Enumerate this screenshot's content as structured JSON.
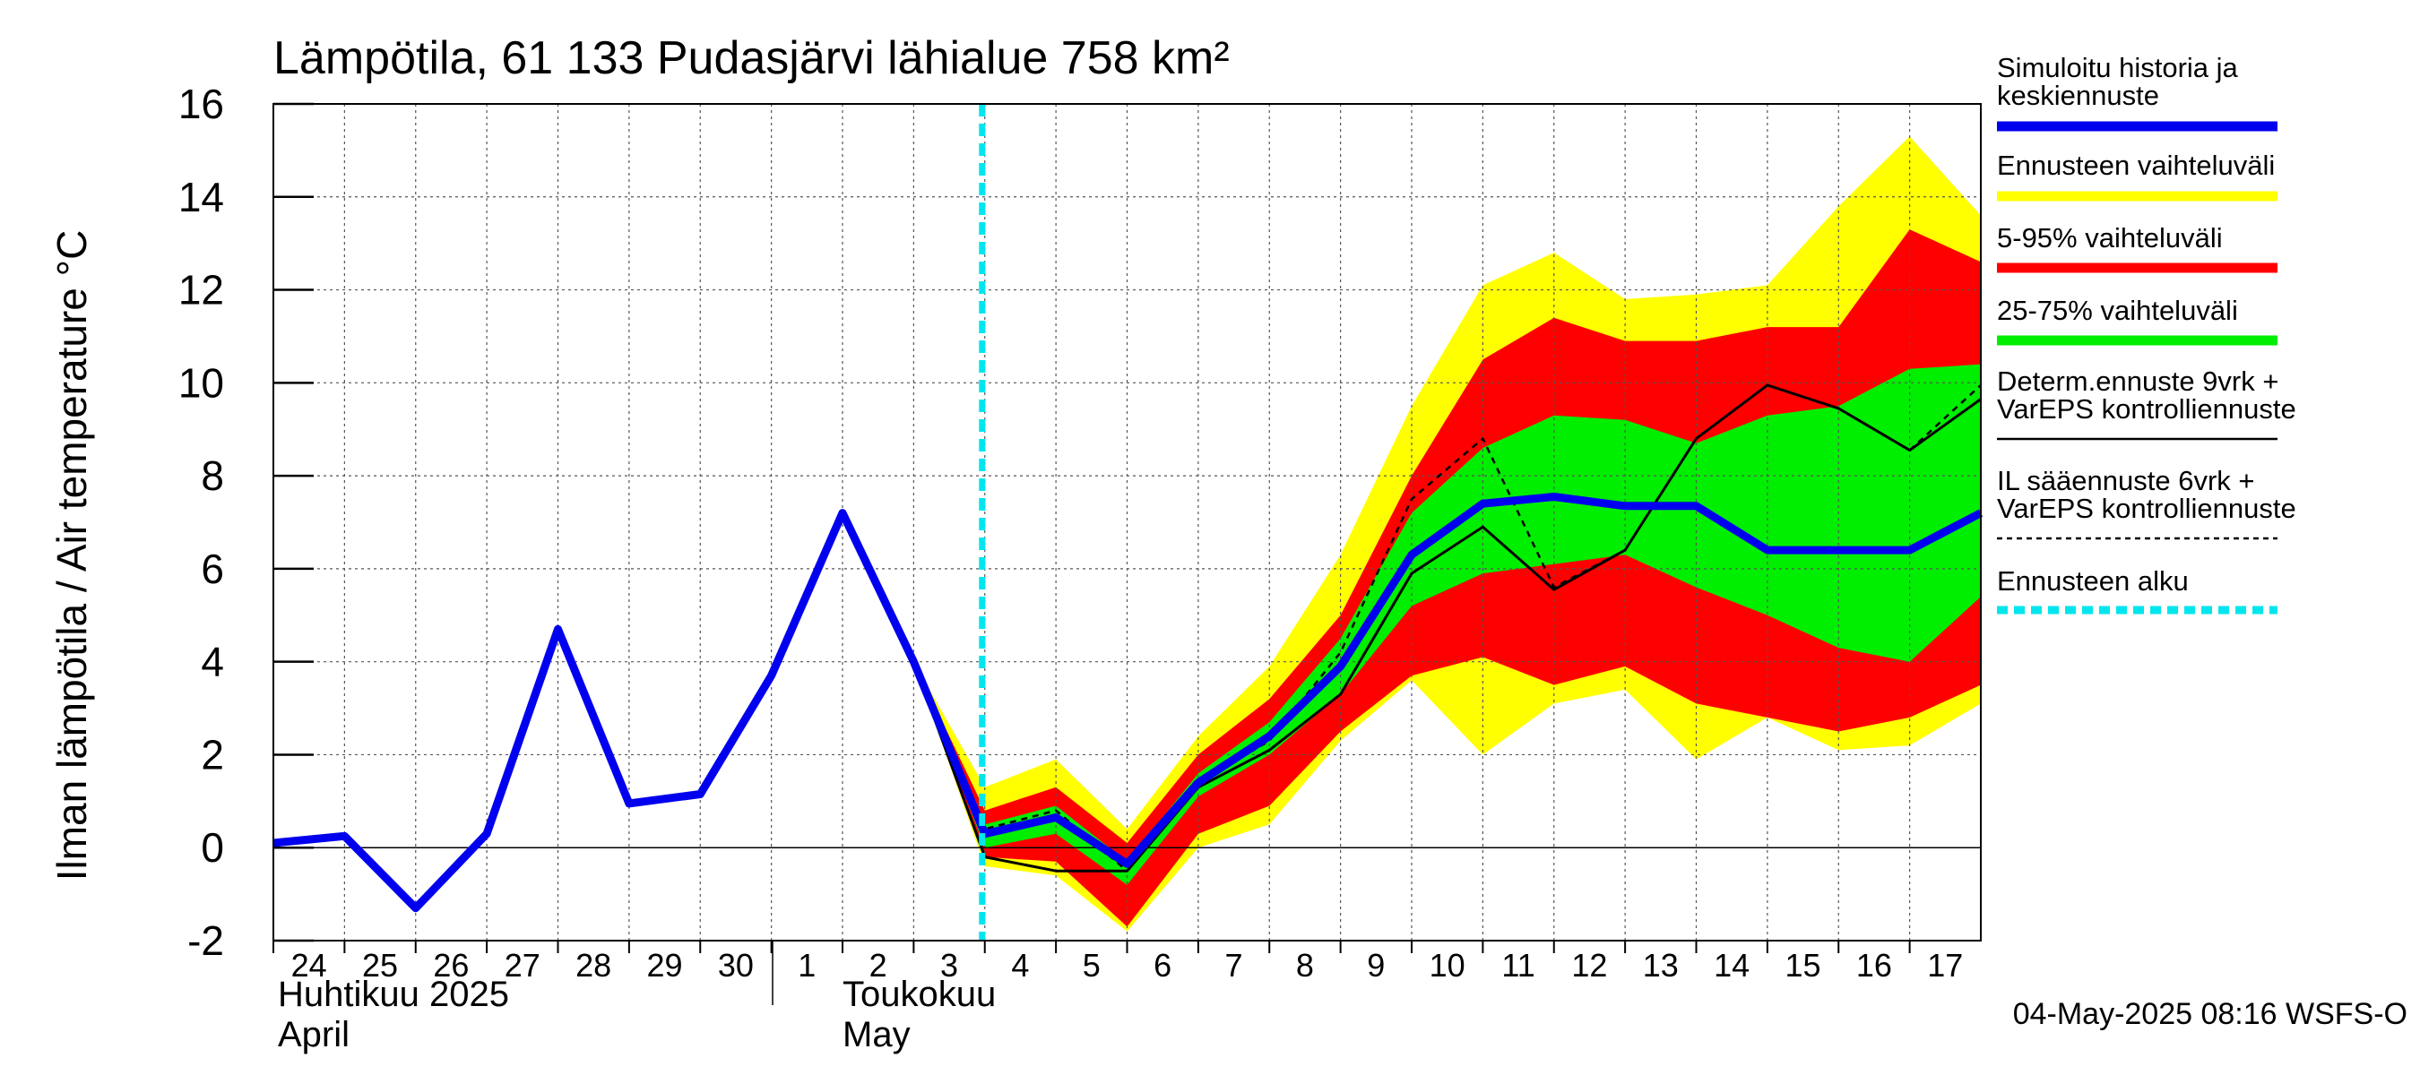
{
  "chart_data": {
    "type": "line",
    "title": "Lämpötila, 61 133 Pudasjärvi lähialue 758 km²",
    "ylabel": "Ilman lämpötila / Air temperature   °C",
    "ylim": [
      -2,
      16
    ],
    "yticks": [
      -2,
      0,
      2,
      4,
      6,
      8,
      10,
      12,
      14,
      16
    ],
    "xrange": [
      "2025-04-24",
      "2025-05-18"
    ],
    "x_tick_labels": [
      "24",
      "25",
      "26",
      "27",
      "28",
      "29",
      "30",
      "1",
      "2",
      "3",
      "4",
      "5",
      "6",
      "7",
      "8",
      "9",
      "10",
      "11",
      "12",
      "13",
      "14",
      "15",
      "16",
      "17"
    ],
    "month_labels": [
      {
        "line1": "Huhtikuu  2025",
        "line2": "April"
      },
      {
        "line1": "Toukokuu",
        "line2": "May"
      }
    ],
    "forecast_start": "2025-05-04",
    "grid": true,
    "footer": "04-May-2025 08:16 WSFS-O",
    "colors": {
      "history": "#0000ee",
      "range_full": "#ffff00",
      "range_5_95": "#ff0000",
      "range_25_75": "#00ee00",
      "determ": "#000000",
      "il": "#000000",
      "forecast_start": "#00e5ee"
    },
    "legend": [
      {
        "key": "history",
        "lines": [
          "Simuloitu historia ja",
          "keskiennuste"
        ],
        "style": "thick"
      },
      {
        "key": "range_full",
        "lines": [
          "Ennusteen vaihteluväli"
        ],
        "style": "thick"
      },
      {
        "key": "range_5_95",
        "lines": [
          "5-95% vaihteluväli"
        ],
        "style": "thick"
      },
      {
        "key": "range_25_75",
        "lines": [
          "25-75% vaihteluväli"
        ],
        "style": "thick"
      },
      {
        "key": "determ",
        "lines": [
          "Determ.ennuste 9vrk +",
          "VarEPS kontrolliennuste"
        ],
        "style": "thin"
      },
      {
        "key": "il",
        "lines": [
          "IL sääennuste 6vrk  +",
          "  VarEPS kontrolliennuste"
        ],
        "style": "dashed"
      },
      {
        "key": "forecast_start",
        "lines": [
          "Ennusteen alku"
        ],
        "style": "dotted"
      }
    ],
    "series": [
      {
        "key": "history",
        "x": [
          0,
          1,
          2,
          3,
          4,
          5,
          6,
          7,
          8,
          9,
          10,
          11,
          12,
          13,
          14,
          15,
          16,
          17,
          18,
          19,
          20,
          21,
          22,
          23,
          24
        ],
        "y": [
          0.1,
          0.25,
          -1.3,
          0.3,
          4.7,
          0.95,
          1.15,
          3.7,
          7.2,
          4.0,
          0.3,
          0.65,
          -0.35,
          1.4,
          2.4,
          3.9,
          6.3,
          7.4,
          7.55,
          7.35,
          7.35,
          6.4,
          6.4,
          6.4,
          7.2
        ]
      },
      {
        "key": "determ",
        "x": [
          8,
          9,
          10,
          11,
          12,
          13,
          14,
          15,
          16,
          17,
          18,
          19,
          20,
          21,
          22,
          23,
          24
        ],
        "y": [
          7.2,
          4.0,
          -0.2,
          -0.5,
          -0.5,
          1.3,
          2.1,
          3.3,
          5.9,
          6.9,
          5.55,
          6.4,
          8.8,
          9.95,
          9.45,
          8.55,
          9.65
        ]
      },
      {
        "key": "il",
        "x": [
          8,
          9,
          10,
          11,
          12,
          13,
          14,
          15,
          16,
          17,
          18,
          19
        ],
        "y": [
          7.2,
          4.0,
          0.4,
          0.8,
          -0.5,
          1.4,
          2.3,
          4.2,
          7.5,
          8.8,
          5.6,
          6.4
        ]
      },
      {
        "key": "control_dashed_end",
        "x": [
          23,
          24
        ],
        "y": [
          8.55,
          9.95
        ]
      }
    ],
    "bands": [
      {
        "key": "range_full",
        "x": [
          9,
          10,
          11,
          12,
          13,
          14,
          15,
          16,
          17,
          18,
          19,
          20,
          21,
          22,
          23,
          24
        ],
        "low": [
          4.0,
          -0.4,
          -0.6,
          -1.8,
          0.0,
          0.5,
          2.3,
          3.6,
          2.0,
          3.1,
          3.4,
          1.9,
          2.8,
          2.1,
          2.2,
          3.1
        ],
        "high": [
          4.0,
          1.3,
          1.9,
          0.4,
          2.4,
          3.9,
          6.3,
          9.5,
          12.1,
          12.8,
          11.8,
          11.9,
          12.1,
          13.8,
          15.3,
          13.6
        ]
      },
      {
        "key": "range_5_95",
        "x": [
          9,
          10,
          11,
          12,
          13,
          14,
          15,
          16,
          17,
          18,
          19,
          20,
          21,
          22,
          23,
          24
        ],
        "low": [
          4.0,
          -0.2,
          -0.3,
          -1.7,
          0.3,
          0.9,
          2.5,
          3.7,
          4.1,
          3.5,
          3.9,
          3.1,
          2.8,
          2.5,
          2.8,
          3.5
        ],
        "high": [
          4.0,
          0.8,
          1.3,
          0.1,
          2.0,
          3.2,
          5.0,
          8.0,
          10.5,
          11.4,
          10.9,
          10.9,
          11.2,
          11.2,
          13.3,
          12.6
        ]
      },
      {
        "key": "range_25_75",
        "x": [
          9,
          10,
          11,
          12,
          13,
          14,
          15,
          16,
          17,
          18,
          19,
          20,
          21,
          22,
          23,
          24
        ],
        "low": [
          4.0,
          0.0,
          0.3,
          -0.8,
          1.1,
          2.0,
          3.3,
          5.2,
          5.9,
          6.1,
          6.3,
          5.6,
          5.0,
          4.3,
          4.0,
          5.4
        ],
        "high": [
          4.0,
          0.5,
          0.9,
          -0.3,
          1.6,
          2.7,
          4.5,
          7.2,
          8.6,
          9.3,
          9.2,
          8.7,
          9.3,
          9.5,
          10.3,
          10.4
        ]
      }
    ]
  }
}
